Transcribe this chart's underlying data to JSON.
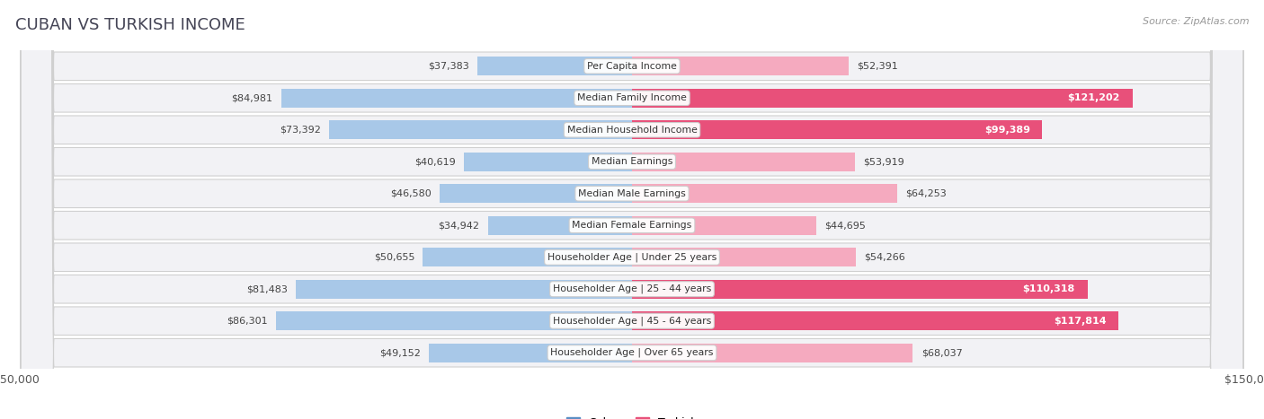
{
  "title": "CUBAN VS TURKISH INCOME",
  "source": "Source: ZipAtlas.com",
  "categories": [
    "Per Capita Income",
    "Median Family Income",
    "Median Household Income",
    "Median Earnings",
    "Median Male Earnings",
    "Median Female Earnings",
    "Householder Age | Under 25 years",
    "Householder Age | 25 - 44 years",
    "Householder Age | 45 - 64 years",
    "Householder Age | Over 65 years"
  ],
  "cuban_values": [
    37383,
    84981,
    73392,
    40619,
    46580,
    34942,
    50655,
    81483,
    86301,
    49152
  ],
  "turkish_values": [
    52391,
    121202,
    99389,
    53919,
    64253,
    44695,
    54266,
    110318,
    117814,
    68037
  ],
  "cuban_labels": [
    "$37,383",
    "$84,981",
    "$73,392",
    "$40,619",
    "$46,580",
    "$34,942",
    "$50,655",
    "$81,483",
    "$86,301",
    "$49,152"
  ],
  "turkish_labels": [
    "$52,391",
    "$121,202",
    "$99,389",
    "$53,919",
    "$64,253",
    "$44,695",
    "$54,266",
    "$110,318",
    "$117,814",
    "$68,037"
  ],
  "max_value": 150000,
  "cuban_color_strong": "#5b8ec4",
  "cuban_color_light": "#a8c8e8",
  "turkish_color_strong": "#e8507a",
  "turkish_color_light": "#f5aabf",
  "background_color": "#ffffff",
  "label_threshold": 90000,
  "figsize": [
    14.06,
    4.67
  ],
  "dpi": 100
}
